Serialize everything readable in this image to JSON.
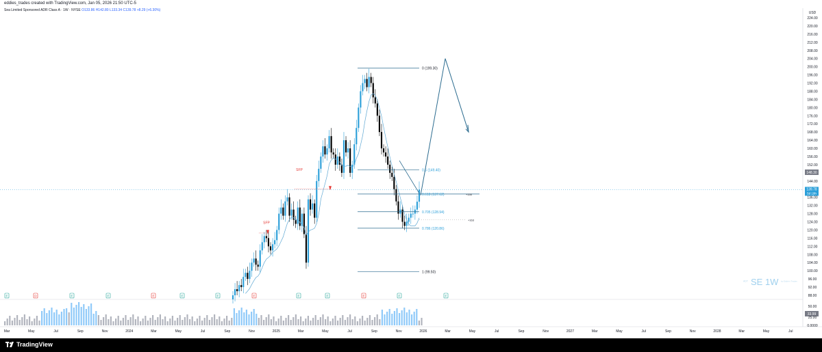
{
  "header": {
    "attribution": "eddies_trades created with TradingView.com, Jan 05, 2026 21:50 UTC-5",
    "symbol_line": "Sea Limited Sponsored ADR Class A · 1W · NYSE",
    "ohlc": {
      "o": "O133.86",
      "h": "H142.80",
      "l": "L133.34",
      "c": "C139.78",
      "chg": "+8.29 (+6.30%)"
    }
  },
  "price_axis": {
    "currency": "USD",
    "ticks": [
      "224.00",
      "220.00",
      "216.00",
      "212.00",
      "208.00",
      "204.00",
      "200.00",
      "196.00",
      "192.00",
      "188.00",
      "184.00",
      "180.00",
      "176.00",
      "172.00",
      "168.00",
      "164.00",
      "160.00",
      "156.00",
      "152.00",
      "148.00",
      "144.00",
      "140.00",
      "136.00",
      "132.00",
      "128.00",
      "124.00",
      "120.00",
      "116.00",
      "112.00",
      "108.00",
      "104.00",
      "100.00",
      "96.00",
      "92.00",
      "88.00"
    ],
    "last_price_label": "139.78",
    "last_price_sub": "5d 19h",
    "ma_label": "148.30"
  },
  "volume_axis": {
    "ticks": [
      "50.00",
      "25.00",
      "0.0000"
    ],
    "last_label": "33.99"
  },
  "time_axis": {
    "labels": [
      "Mar",
      "May",
      "Jul",
      "Sep",
      "Nov",
      "2024",
      "Mar",
      "May",
      "Jul",
      "Sep",
      "Nov",
      "2025",
      "Mar",
      "May",
      "Jul",
      "Sep",
      "Nov",
      "2026",
      "Mar",
      "May",
      "Jul",
      "Sep",
      "Nov",
      "2027",
      "Mar",
      "May",
      "Jul",
      "Sep",
      "Nov",
      "2028",
      "Mar",
      "May",
      "Jul"
    ]
  },
  "annotations": {
    "sfp_labels": [
      "SFP",
      "SFP"
    ],
    "fib_labels": [
      "0 (199.30)",
      "0.5 (149.40)",
      "0.618 (137.62)",
      "0.705 (128.94)",
      "0.786 (120.86)",
      "1 (99.50)"
    ],
    "right_tags": [
      "+150",
      "+163"
    ],
    "watermark": "SE 1W",
    "watermark_small": "by Eddie's Trades",
    "watermark_prefix": "ADT"
  },
  "event_badges": [
    "E",
    "D",
    "E",
    "E",
    "E",
    "E",
    "E",
    "E",
    "E",
    "E",
    "E",
    "E",
    "E",
    "S"
  ],
  "footer": {
    "brand": "TradingView"
  },
  "colors": {
    "up": "#2b9fd9",
    "down": "#000000",
    "fib": "#2b6b8f",
    "ma": "#5fa8d3",
    "sfp": "#e53935"
  },
  "chart_data": {
    "type": "candlestick",
    "symbol": "SE",
    "timeframe": "1W",
    "ylim": [
      86,
      226
    ],
    "fib_levels": [
      {
        "ratio": 0,
        "price": 199.3
      },
      {
        "ratio": 0.5,
        "price": 149.4
      },
      {
        "ratio": 0.618,
        "price": 137.62
      },
      {
        "ratio": 0.705,
        "price": 128.94
      },
      {
        "ratio": 0.786,
        "price": 120.86
      },
      {
        "ratio": 1,
        "price": 99.5
      }
    ],
    "closes": [
      88,
      91,
      90,
      93,
      92,
      97,
      99,
      96,
      100,
      104,
      106,
      103,
      102,
      110,
      114,
      117,
      116,
      112,
      110,
      113,
      115,
      120,
      128,
      131,
      127,
      134,
      136,
      127,
      130,
      125,
      123,
      131,
      122,
      128,
      118,
      104,
      135,
      130,
      133,
      126,
      144,
      150,
      156,
      161,
      157,
      160,
      166,
      158,
      157,
      152,
      156,
      152,
      148,
      164,
      158,
      160,
      148,
      152,
      162,
      170,
      180,
      188,
      192,
      194,
      190,
      195,
      192,
      185,
      182,
      176,
      168,
      160,
      158,
      156,
      152,
      148,
      146,
      140,
      134,
      128,
      130,
      124,
      122,
      124,
      126,
      128,
      128,
      130,
      133.86,
      139.78
    ],
    "projection": [
      [
        137.62,
        204
      ],
      [
        204,
        168
      ]
    ],
    "last_price": 139.78,
    "ma_last": 148.3
  }
}
